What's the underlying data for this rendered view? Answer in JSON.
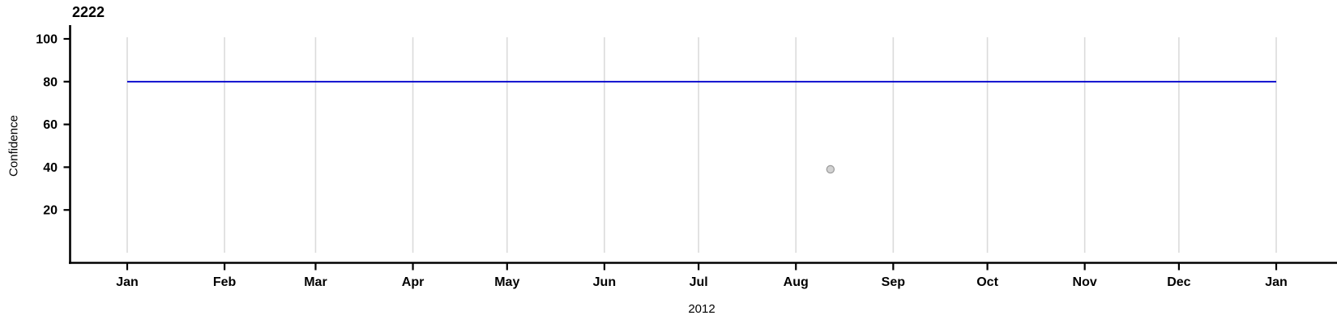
{
  "chart_data": {
    "type": "line",
    "title": "2222",
    "ylabel": "Confidence",
    "xlabel": "2012",
    "x_axis_type": "date",
    "x_range": [
      "2012-01-01",
      "2013-01-01"
    ],
    "days_in_range": 366,
    "x_tick_labels": [
      "Jan",
      "Feb",
      "Mar",
      "Apr",
      "May",
      "Jun",
      "Jul",
      "Aug",
      "Sep",
      "Oct",
      "Nov",
      "Dec",
      "Jan"
    ],
    "x_tick_day_offsets": [
      0,
      31,
      60,
      91,
      121,
      152,
      182,
      213,
      244,
      274,
      305,
      335,
      366
    ],
    "y_ticks": [
      20,
      40,
      60,
      80,
      100
    ],
    "ylim": [
      0,
      100
    ],
    "grid": "vertical-month-gridlines",
    "legend": "none",
    "series": [
      {
        "name": "confidence-line",
        "type": "line",
        "color": "#0000CC",
        "points": [
          {
            "date": "2012-01-01",
            "day": 0,
            "value": 80
          },
          {
            "date": "2013-01-01",
            "day": 366,
            "value": 80
          }
        ]
      },
      {
        "name": "outlier-point",
        "type": "scatter",
        "fill": "#D2D2D2",
        "stroke": "#9E9E9E",
        "points": [
          {
            "date": "2012-08-12",
            "day": 224,
            "value": 39
          }
        ]
      }
    ],
    "colors": {
      "gridline": "#DBDBDB",
      "axis": "#000000",
      "tick_text": "#000000"
    }
  }
}
